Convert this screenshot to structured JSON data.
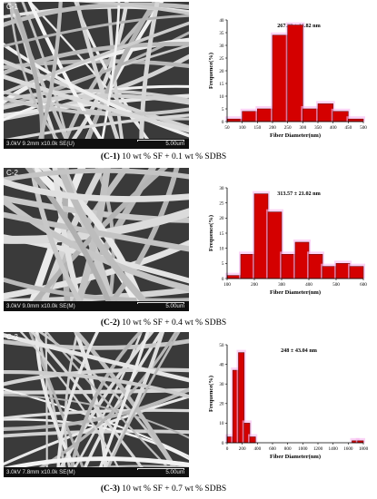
{
  "panels": [
    {
      "id": "C-1",
      "sem": {
        "label": "C-1",
        "info": "3.0kV 9.2mm x10.0k SE(U)",
        "scale": "5.00um"
      },
      "caption": {
        "id": "(C-1)",
        "text": " 10 wt % SF + 0.1 wt % SDBS"
      }
    },
    {
      "id": "C-2",
      "sem": {
        "label": "C-2",
        "info": "3.0kV 9.0mm x10.0k SE(M)",
        "scale": "5.00um"
      },
      "caption": {
        "id": "(C-2)",
        "text": " 10 wt % SF + 0.4 wt % SDBS"
      }
    },
    {
      "id": "C-3",
      "sem": {
        "label": "C-3",
        "info": "3.0kV 7.8mm x10.0k SE(M)",
        "scale": "5.00um"
      },
      "caption": {
        "id": "(C-3)",
        "text": " 10 wt % SF + 0.7 wt % SDBS"
      }
    }
  ],
  "colors": {
    "bar_fill": "#d40000",
    "bar_edge": "#6b0e0e",
    "glow": "#f7b8f0",
    "sem_bg": "#3a3a3a"
  },
  "chart_data": [
    {
      "type": "bar",
      "title": "267.38 ± 13.82 nm",
      "xlabel": "Fiber Diameter(nm)",
      "ylabel": "Frequence(%)",
      "xlim": [
        50,
        500
      ],
      "ylim": [
        0,
        40
      ],
      "xticks": [
        50,
        100,
        150,
        200,
        250,
        300,
        350,
        400,
        450,
        500
      ],
      "yticks": [
        0,
        5,
        10,
        15,
        20,
        25,
        30,
        35,
        40
      ],
      "bin_width": 50,
      "x": [
        50,
        100,
        150,
        200,
        250,
        300,
        350,
        400,
        450
      ],
      "values": [
        1,
        4,
        5,
        34,
        38,
        5,
        7,
        4,
        1
      ]
    },
    {
      "type": "bar",
      "title": "313.57 ± 21.02 nm",
      "xlabel": "Fiber Diameter(nm)",
      "ylabel": "Frequence(%)",
      "xlim": [
        100,
        600
      ],
      "ylim": [
        0,
        30
      ],
      "xticks": [
        100,
        200,
        300,
        400,
        500,
        600
      ],
      "yticks": [
        0,
        5,
        10,
        15,
        20,
        25,
        30
      ],
      "bin_width": 50,
      "x": [
        100,
        150,
        200,
        250,
        300,
        350,
        400,
        450,
        500,
        550
      ],
      "values": [
        1,
        8,
        28,
        22,
        8,
        12,
        8,
        4,
        5,
        4
      ]
    },
    {
      "type": "bar",
      "title": "248 ± 43.04 nm",
      "xlabel": "Fiber Diameter(nm)",
      "ylabel": "Frequence(%)",
      "xlim": [
        0,
        1800
      ],
      "ylim": [
        0,
        50
      ],
      "xticks": [
        0,
        200,
        400,
        600,
        800,
        1000,
        1200,
        1400,
        1600,
        1800
      ],
      "yticks": [
        0,
        10,
        20,
        30,
        40,
        50
      ],
      "bin_width": 75,
      "x": [
        0,
        75,
        150,
        225,
        300,
        1650,
        1725
      ],
      "values": [
        3,
        37,
        46,
        10,
        3,
        1,
        1
      ]
    }
  ]
}
